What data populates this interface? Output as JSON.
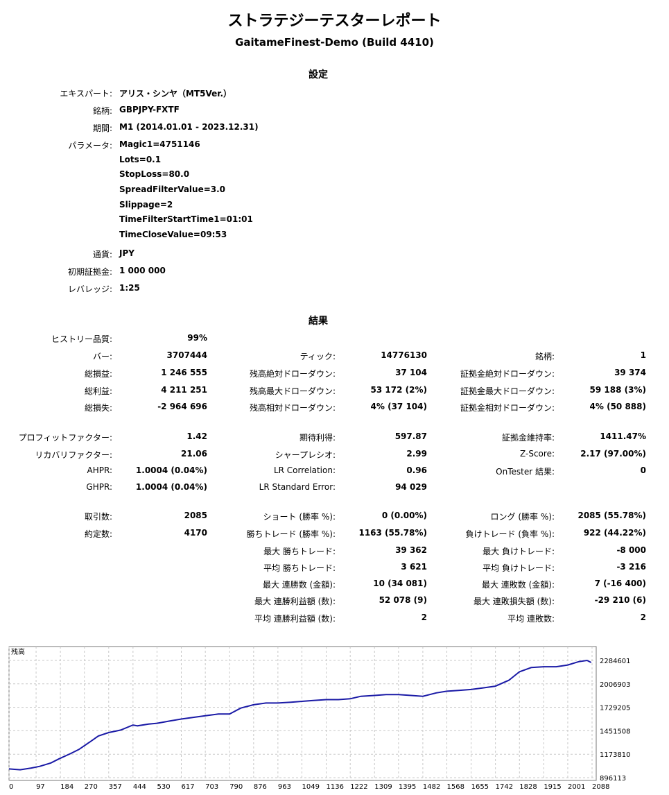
{
  "header": {
    "title": "ストラテジーテスターレポート",
    "subtitle": "GaitameFinest-Demo (Build 4410)"
  },
  "settings": {
    "section_title": "設定",
    "expert_label": "エキスパート:",
    "expert_value": "アリス・シンヤ（MT5Ver.）",
    "symbol_label": "銘柄:",
    "symbol_value": "GBPJPY-FXTF",
    "period_label": "期間:",
    "period_value": "M1 (2014.01.01 - 2023.12.31)",
    "params_label": "パラメータ:",
    "params": [
      "Magic1=4751146",
      "Lots=0.1",
      "StopLoss=80.0",
      "SpreadFilterValue=3.0",
      "Slippage=2",
      "TimeFilterStartTime1=01:01",
      "TimeCloseValue=09:53"
    ],
    "currency_label": "通貨:",
    "currency_value": "JPY",
    "deposit_label": "初期証拠金:",
    "deposit_value": "1 000 000",
    "leverage_label": "レバレッジ:",
    "leverage_value": "1:25"
  },
  "results": {
    "section_title": "結果",
    "rows": [
      [
        "ヒストリー品質:",
        "99%",
        "",
        "",
        "",
        ""
      ],
      [
        "バー:",
        "3707444",
        "ティック:",
        "14776130",
        "銘柄:",
        "1"
      ],
      [
        "総損益:",
        "1 246 555",
        "残高絶対ドローダウン:",
        "37 104",
        "証拠金絶対ドローダウン:",
        "39 374"
      ],
      [
        "総利益:",
        "4 211 251",
        "残高最大ドローダウン:",
        "53 172 (2%)",
        "証拠金最大ドローダウン:",
        "59 188 (3%)"
      ],
      [
        "総損失:",
        "-2 964 696",
        "残高相対ドローダウン:",
        "4% (37 104)",
        "証拠金相対ドローダウン:",
        "4% (50 888)"
      ],
      [
        "プロフィットファクター:",
        "1.42",
        "期待利得:",
        "597.87",
        "証拠金維持率:",
        "1411.47%"
      ],
      [
        "リカバリファクター:",
        "21.06",
        "シャープレシオ:",
        "2.99",
        "Z-Score:",
        "2.17 (97.00%)"
      ],
      [
        "AHPR:",
        "1.0004 (0.04%)",
        "LR Correlation:",
        "0.96",
        "OnTester 結果:",
        "0"
      ],
      [
        "GHPR:",
        "1.0004 (0.04%)",
        "LR Standard Error:",
        "94 029",
        "",
        ""
      ],
      [
        "取引数:",
        "2085",
        "ショート (勝率 %):",
        "0 (0.00%)",
        "ロング (勝率 %):",
        "2085 (55.78%)"
      ],
      [
        "約定数:",
        "4170",
        "勝ちトレード (勝率 %):",
        "1163 (55.78%)",
        "負けトレード (負率 %):",
        "922 (44.22%)"
      ],
      [
        "",
        "",
        "最大 勝ちトレード:",
        "39 362",
        "最大 負けトレード:",
        "-8 000"
      ],
      [
        "",
        "",
        "平均 勝ちトレード:",
        "3 621",
        "平均 負けトレード:",
        "-3 216"
      ],
      [
        "",
        "",
        "最大 連勝数 (金額):",
        "10 (34 081)",
        "最大 連敗数 (金額):",
        "7 (-16 400)"
      ],
      [
        "",
        "",
        "最大 連勝利益額 (数):",
        "52 078 (9)",
        "最大 連敗損失額 (数):",
        "-29 210 (6)"
      ],
      [
        "",
        "",
        "平均 連勝利益額 (数):",
        "2",
        "平均 連敗数:",
        "2"
      ]
    ]
  },
  "chart_data": {
    "type": "line",
    "title": "残高",
    "x_ticks": [
      0,
      97,
      184,
      270,
      357,
      444,
      530,
      617,
      703,
      790,
      876,
      963,
      1049,
      1136,
      1222,
      1309,
      1395,
      1482,
      1568,
      1655,
      1742,
      1828,
      1915,
      2001,
      2088
    ],
    "y_ticks": [
      896113,
      1173810,
      1451508,
      1729205,
      2006903,
      2284601
    ],
    "xlim": [
      0,
      2085
    ],
    "ylim": [
      896113,
      2284601
    ],
    "grid": true,
    "line_color": "#1a1aa6",
    "series": [
      {
        "x": [
          0,
          40,
          80,
          110,
          150,
          180,
          220,
          250,
          290,
          320,
          357,
          400,
          444,
          460,
          500,
          530,
          580,
          617,
          660,
          703,
          750,
          790,
          830,
          876,
          920,
          963,
          1010,
          1049,
          1090,
          1136,
          1180,
          1222,
          1260,
          1309,
          1350,
          1395,
          1440,
          1482,
          1530,
          1568,
          1610,
          1655,
          1700,
          1742,
          1790,
          1828,
          1870,
          1915,
          1960,
          2001,
          2040,
          2070,
          2085
        ],
        "y": [
          1000000,
          990000,
          1010000,
          1030000,
          1070000,
          1120000,
          1180000,
          1230000,
          1320000,
          1390000,
          1430000,
          1460000,
          1520000,
          1510000,
          1530000,
          1540000,
          1570000,
          1590000,
          1610000,
          1630000,
          1650000,
          1650000,
          1720000,
          1760000,
          1780000,
          1780000,
          1790000,
          1800000,
          1810000,
          1820000,
          1820000,
          1830000,
          1860000,
          1870000,
          1880000,
          1880000,
          1870000,
          1860000,
          1900000,
          1920000,
          1930000,
          1940000,
          1960000,
          1980000,
          2050000,
          2150000,
          2200000,
          2210000,
          2210000,
          2230000,
          2270000,
          2285000,
          2260000
        ]
      }
    ]
  }
}
